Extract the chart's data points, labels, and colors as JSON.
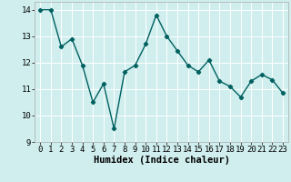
{
  "x": [
    0,
    1,
    2,
    3,
    4,
    5,
    6,
    7,
    8,
    9,
    10,
    11,
    12,
    13,
    14,
    15,
    16,
    17,
    18,
    19,
    20,
    21,
    22,
    23
  ],
  "y": [
    14.0,
    14.0,
    12.6,
    12.9,
    11.9,
    10.5,
    11.2,
    9.5,
    11.65,
    11.9,
    12.7,
    13.8,
    13.0,
    12.45,
    11.9,
    11.65,
    12.1,
    11.3,
    11.1,
    10.7,
    11.3,
    11.55,
    11.35,
    10.85
  ],
  "line_color": "#006060",
  "marker": "D",
  "marker_size": 2.2,
  "background_color": "#d0eeee",
  "grid_color": "#ffffff",
  "xlabel": "Humidex (Indice chaleur)",
  "ylim": [
    9,
    14.3
  ],
  "xlim": [
    -0.5,
    23.5
  ],
  "yticks": [
    9,
    10,
    11,
    12,
    13,
    14
  ],
  "xticks": [
    0,
    1,
    2,
    3,
    4,
    5,
    6,
    7,
    8,
    9,
    10,
    11,
    12,
    13,
    14,
    15,
    16,
    17,
    18,
    19,
    20,
    21,
    22,
    23
  ],
  "xlabel_fontsize": 7.5,
  "tick_fontsize": 6.5,
  "line_width": 1.0
}
